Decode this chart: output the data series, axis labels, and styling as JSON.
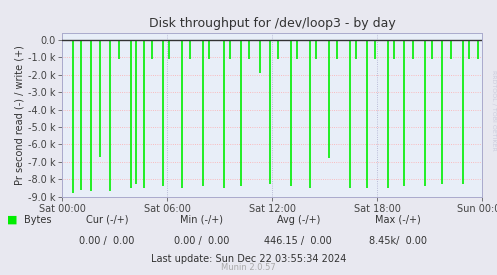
{
  "title": "Disk throughput for /dev/loop3 - by day",
  "ylabel": "Pr second read (-) / write (+)",
  "bg_color": "#e8e8f0",
  "plot_bg_color": "#e8eef8",
  "line_color": "#00ee00",
  "border_color": "#aaaacc",
  "ylim": [
    -9000,
    400
  ],
  "yticks": [
    0,
    -1000,
    -2000,
    -3000,
    -4000,
    -5000,
    -6000,
    -7000,
    -8000,
    -9000
  ],
  "ytick_labels": [
    "0.0",
    "-1.0 k",
    "-2.0 k",
    "-3.0 k",
    "-4.0 k",
    "-5.0 k",
    "-6.0 k",
    "-7.0 k",
    "-8.0 k",
    "-9.0 k"
  ],
  "xtick_labels": [
    "Sat 00:00",
    "Sat 06:00",
    "Sat 12:00",
    "Sat 18:00",
    "Sun 00:00"
  ],
  "watermark": "RRDTOOL / TOBI OETIKER",
  "footer_update": "Last update: Sun Dec 22 03:55:34 2024",
  "footer_munin": "Munin 2.0.57",
  "spike_x": [
    0.025,
    0.045,
    0.068,
    0.09,
    0.115,
    0.135,
    0.165,
    0.175,
    0.195,
    0.215,
    0.24,
    0.255,
    0.285,
    0.305,
    0.335,
    0.35,
    0.385,
    0.4,
    0.425,
    0.445,
    0.47,
    0.495,
    0.515,
    0.545,
    0.56,
    0.59,
    0.605,
    0.635,
    0.655,
    0.685,
    0.7,
    0.725,
    0.745,
    0.775,
    0.79,
    0.815,
    0.835,
    0.865,
    0.88,
    0.905,
    0.925,
    0.955,
    0.97,
    0.99
  ],
  "spike_y": [
    -8800,
    -8600,
    -8700,
    -6700,
    -8700,
    -1100,
    -8500,
    -8300,
    -8500,
    -1100,
    -8400,
    -1100,
    -8500,
    -1100,
    -8400,
    -1100,
    -8500,
    -1100,
    -8400,
    -1100,
    -1900,
    -8300,
    -1100,
    -8400,
    -1100,
    -8500,
    -1100,
    -6800,
    -1100,
    -8500,
    -1100,
    -8500,
    -1100,
    -8500,
    -1100,
    -8400,
    -1100,
    -8400,
    -1100,
    -8300,
    -1100,
    -8300,
    -1100,
    -1100
  ]
}
